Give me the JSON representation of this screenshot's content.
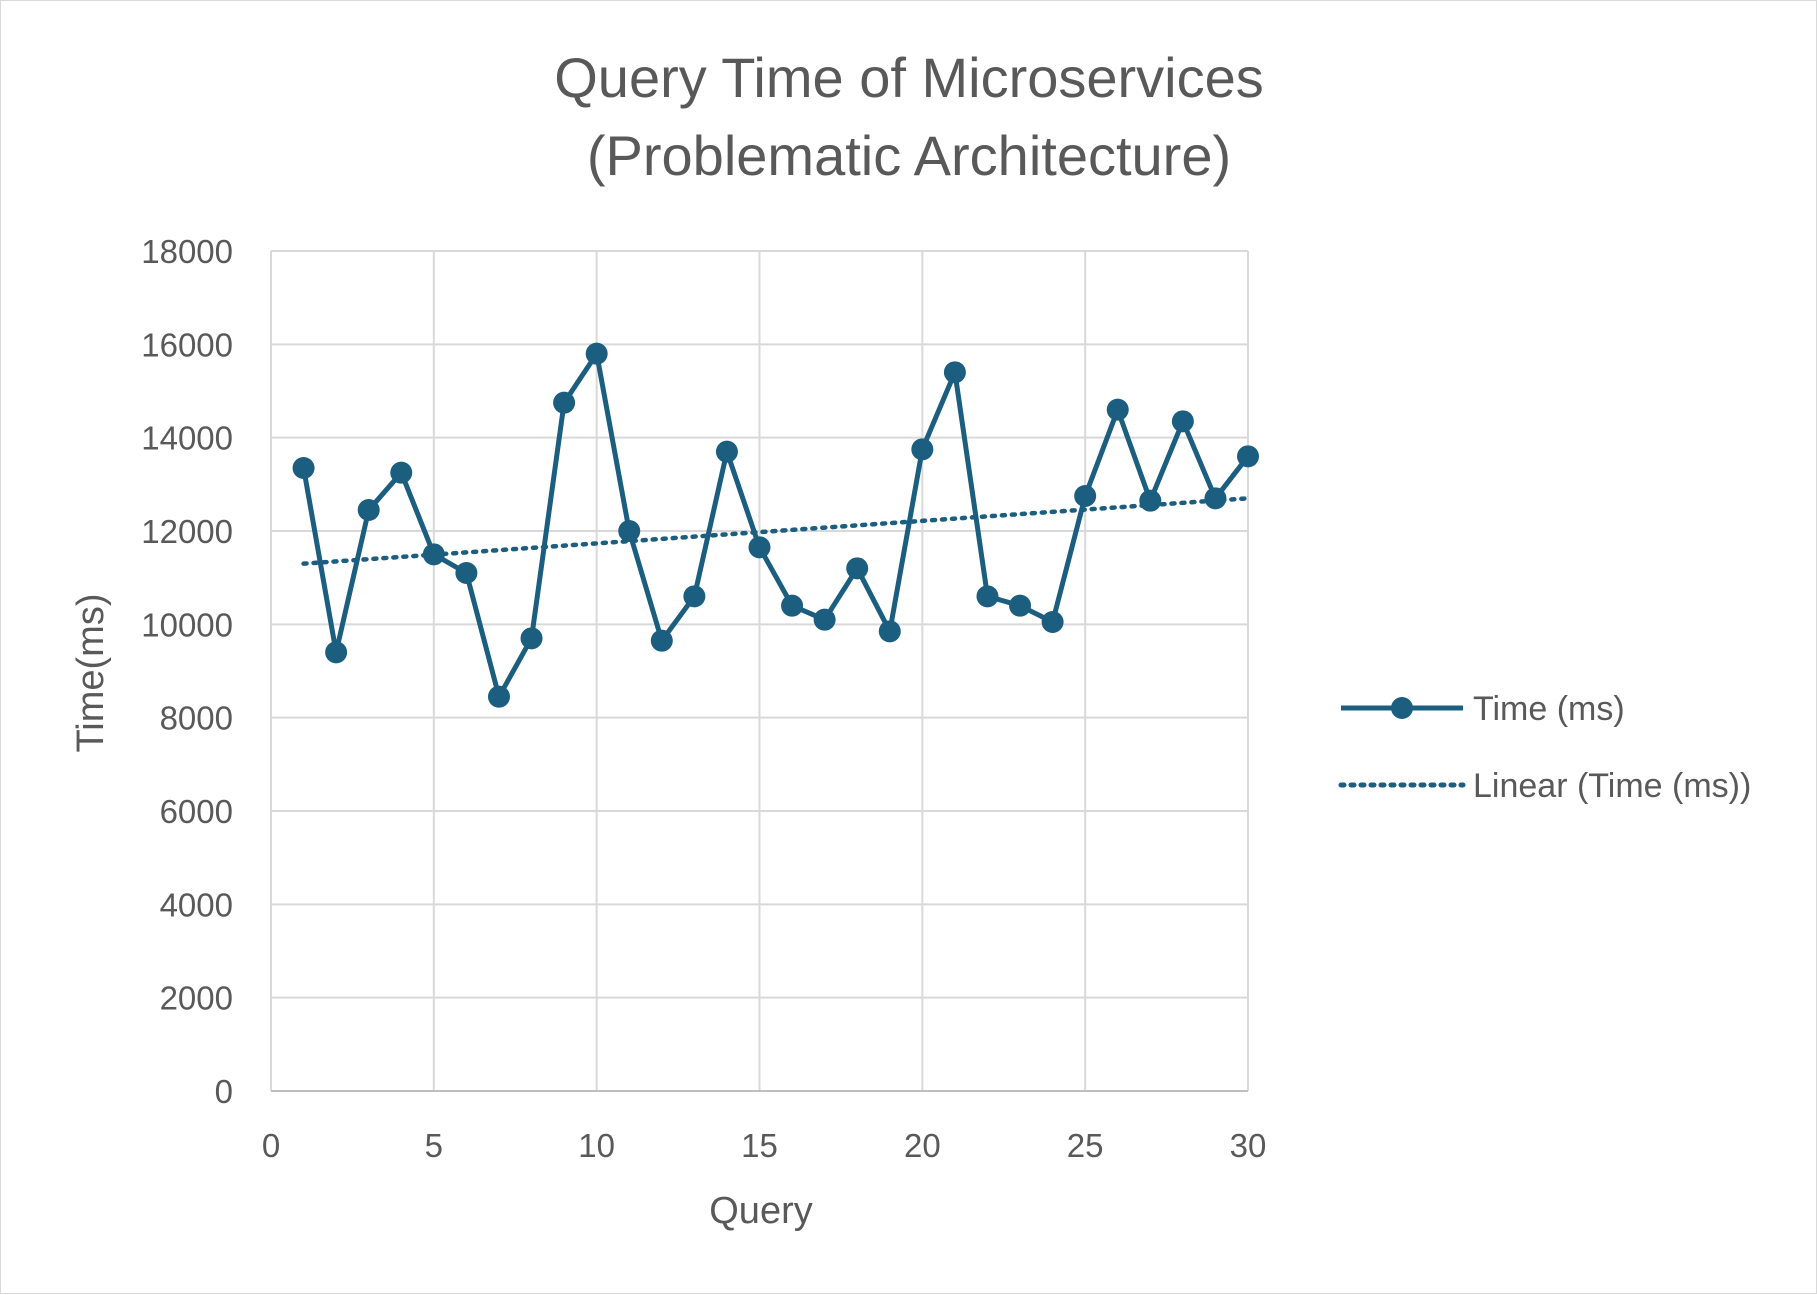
{
  "colors": {
    "series": "#1b5e80",
    "gridline": "#d9d9d9",
    "text": "#595959"
  },
  "chart_data": {
    "type": "line",
    "title_lines": [
      "Query Time of Microservices",
      "(Problematic Architecture)"
    ],
    "xlabel": "Query",
    "ylabel": "Time(ms)",
    "xlim": [
      0,
      30
    ],
    "ylim": [
      0,
      18000
    ],
    "x_ticks": [
      "0",
      "5",
      "10",
      "15",
      "20",
      "25",
      "30"
    ],
    "y_ticks": [
      "0",
      "2000",
      "4000",
      "6000",
      "8000",
      "10000",
      "12000",
      "14000",
      "16000",
      "18000"
    ],
    "grid": true,
    "legend_position": "right",
    "series": [
      {
        "name": "Time (ms)",
        "marker": "circle",
        "x": [
          1,
          2,
          3,
          4,
          5,
          6,
          7,
          8,
          9,
          10,
          11,
          12,
          13,
          14,
          15,
          16,
          17,
          18,
          19,
          20,
          21,
          22,
          23,
          24,
          25,
          26,
          27,
          28,
          29,
          30
        ],
        "values": [
          13350,
          9400,
          12450,
          13250,
          11500,
          11100,
          8450,
          9700,
          14750,
          15800,
          12000,
          9650,
          10600,
          13700,
          11650,
          10400,
          10100,
          11200,
          9850,
          13750,
          15400,
          10600,
          10400,
          10050,
          12750,
          14600,
          12650,
          14350,
          12700,
          13600
        ]
      },
      {
        "name": "Linear (Time (ms))",
        "style": "dotted-trendline",
        "x": [
          1,
          30
        ],
        "values": [
          11300,
          12700
        ]
      }
    ]
  }
}
